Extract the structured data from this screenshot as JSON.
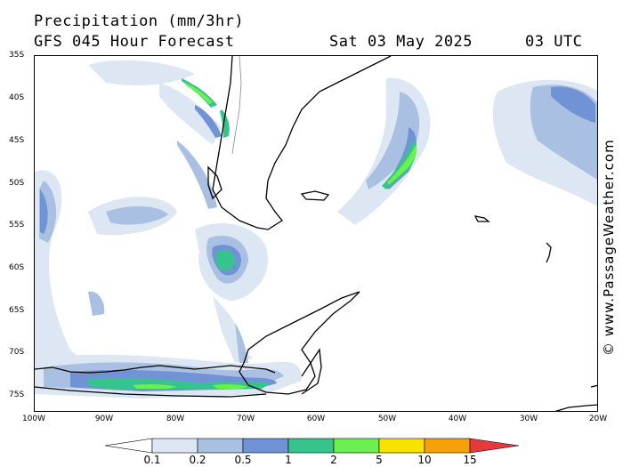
{
  "header": {
    "line1": "Precipitation (mm/3hr)",
    "line2": "GFS 045 Hour Forecast",
    "date": "Sat 03 May 2025",
    "time": "03 UTC"
  },
  "watermark": "© www.PassageWeather.com",
  "axes": {
    "lat_labels": [
      "35S",
      "40S",
      "45S",
      "50S",
      "55S",
      "60S",
      "65S",
      "70S",
      "75S"
    ],
    "lon_labels": [
      "100W",
      "90W",
      "80W",
      "70W",
      "60W",
      "50W",
      "40W",
      "30W",
      "20W"
    ]
  },
  "legend": {
    "levels": [
      "0.1",
      "0.2",
      "0.5",
      "1",
      "2",
      "5",
      "10",
      "15"
    ],
    "colors": [
      "#ffffff",
      "#dde7f4",
      "#a9c0e2",
      "#6f93d4",
      "#36c48c",
      "#6af04f",
      "#f7e200",
      "#f7a00a",
      "#e8383c"
    ]
  },
  "colors": {
    "light": "#dde7f4",
    "mid": "#a9c0e2",
    "dark": "#6f93d4",
    "teal": "#36c48c",
    "green": "#6af04f"
  }
}
